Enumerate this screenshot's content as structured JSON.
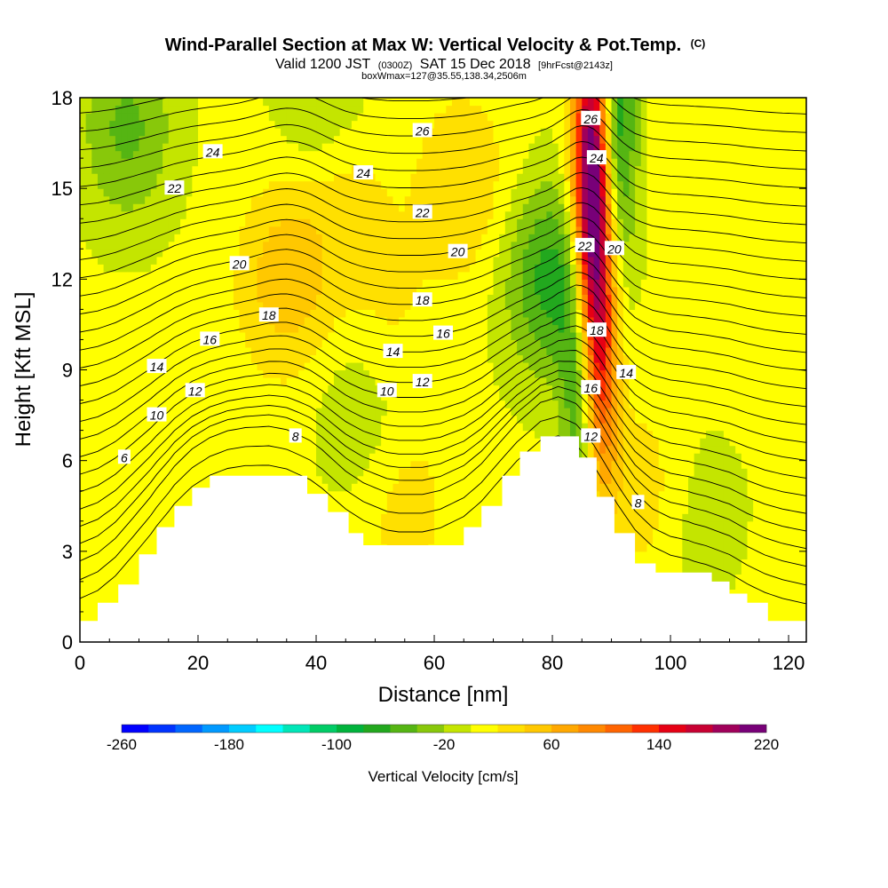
{
  "chart_data": {
    "type": "heatmap",
    "title": "Wind-Parallel Section at Max W: Vertical Velocity & Pot.Temp.",
    "title_unit": "(C)",
    "subtitle_parts": [
      "Valid 1200 JST",
      "(0300Z)",
      "SAT 15 Dec 2018",
      "[9hrFcst@2143z]"
    ],
    "subtitle2": "boxWmax=127@35.55,138.34,2506m",
    "xlabel": "Distance [nm]",
    "ylabel": "Height [Kft MSL]",
    "xlim": [
      0,
      123
    ],
    "ylim": [
      0,
      18
    ],
    "xticks": [
      "0",
      "20",
      "40",
      "60",
      "80",
      "100",
      "120"
    ],
    "yticks": [
      "0",
      "3",
      "6",
      "9",
      "12",
      "15",
      "18"
    ],
    "colorbar": {
      "label": "Vertical Velocity [cm/s]",
      "range": [
        -260,
        220
      ],
      "tick_labels": [
        "-260",
        "-180",
        "-100",
        "-20",
        "60",
        "140",
        "220"
      ],
      "colors": [
        "#0000ff",
        "#0033ff",
        "#0066ff",
        "#0099ff",
        "#00ccff",
        "#00ffff",
        "#00e6b8",
        "#00cc66",
        "#00b33c",
        "#22a81e",
        "#55b513",
        "#88c80a",
        "#c4e500",
        "#ffff00",
        "#ffe000",
        "#ffc800",
        "#ffa800",
        "#ff8800",
        "#ff6400",
        "#ff3000",
        "#e60014",
        "#c80032",
        "#a0005a",
        "#780078"
      ]
    },
    "terrain_heights_kft": [
      [
        0,
        0.7
      ],
      [
        3,
        0.7
      ],
      [
        3,
        1.3
      ],
      [
        6.5,
        1.3
      ],
      [
        6.5,
        1.9
      ],
      [
        10,
        1.9
      ],
      [
        10,
        2.9
      ],
      [
        13,
        2.9
      ],
      [
        13,
        3.8
      ],
      [
        16,
        3.8
      ],
      [
        16,
        4.5
      ],
      [
        19,
        4.5
      ],
      [
        19,
        5.1
      ],
      [
        22,
        5.1
      ],
      [
        22,
        5.5
      ],
      [
        38.5,
        5.5
      ],
      [
        38.5,
        4.9
      ],
      [
        42,
        4.9
      ],
      [
        42,
        4.3
      ],
      [
        45.5,
        4.3
      ],
      [
        45.5,
        3.6
      ],
      [
        48,
        3.6
      ],
      [
        48,
        3.2
      ],
      [
        65,
        3.2
      ],
      [
        65,
        3.8
      ],
      [
        68,
        3.8
      ],
      [
        68,
        4.5
      ],
      [
        71.5,
        4.5
      ],
      [
        71.5,
        5.5
      ],
      [
        74.5,
        5.5
      ],
      [
        74.5,
        6.3
      ],
      [
        78,
        6.3
      ],
      [
        78,
        6.8
      ],
      [
        84.5,
        6.8
      ],
      [
        84.5,
        6.1
      ],
      [
        87.5,
        6.1
      ],
      [
        87.5,
        4.8
      ],
      [
        90.5,
        4.8
      ],
      [
        90.5,
        3.6
      ],
      [
        94,
        3.6
      ],
      [
        94,
        2.6
      ],
      [
        97.5,
        2.6
      ],
      [
        97.5,
        2.3
      ],
      [
        107,
        2.3
      ],
      [
        107,
        2.0
      ],
      [
        110,
        2.0
      ],
      [
        110,
        1.6
      ],
      [
        113,
        1.6
      ],
      [
        113,
        1.3
      ],
      [
        116.5,
        1.3
      ],
      [
        116.5,
        0.7
      ],
      [
        123,
        0.7
      ]
    ],
    "velocity_features_cm_s": [
      {
        "x": 87,
        "y": 13,
        "w": 150
      },
      {
        "x": 86.5,
        "y": 16.5,
        "w": 140
      },
      {
        "x": 88,
        "y": 9,
        "w": 110
      },
      {
        "x": 35,
        "y": 12,
        "w": 50
      },
      {
        "x": 44,
        "y": 16,
        "w": 45
      },
      {
        "x": 51,
        "y": 10.5,
        "w": 25
      },
      {
        "x": 65,
        "y": 15,
        "w": 35
      },
      {
        "x": 55,
        "y": 4.5,
        "w": 25
      },
      {
        "x": 95,
        "y": 5,
        "w": 25
      },
      {
        "x": 110,
        "y": 3,
        "w": 25
      },
      {
        "x": 80,
        "y": 12,
        "w": -75
      },
      {
        "x": 91,
        "y": 17,
        "w": -90
      },
      {
        "x": 85,
        "y": 8,
        "w": -85
      },
      {
        "x": 8,
        "y": 17,
        "w": -50
      },
      {
        "x": 42,
        "y": 17.5,
        "w": -55
      },
      {
        "x": 108,
        "y": 3.5,
        "w": -40
      },
      {
        "x": 48,
        "y": 8,
        "w": -30
      },
      {
        "x": 2,
        "y": 5,
        "w": 15
      },
      {
        "x": 119,
        "y": 9,
        "w": 10
      }
    ],
    "theta_contour_labels": [
      {
        "text": "6",
        "x": 7.5,
        "y": 6.1
      },
      {
        "text": "8",
        "x": 36.5,
        "y": 6.8
      },
      {
        "text": "10",
        "x": 13,
        "y": 7.5
      },
      {
        "text": "12",
        "x": 19.5,
        "y": 8.3
      },
      {
        "text": "14",
        "x": 13,
        "y": 9.1
      },
      {
        "text": "16",
        "x": 22,
        "y": 10.0
      },
      {
        "text": "18",
        "x": 32,
        "y": 10.8
      },
      {
        "text": "20",
        "x": 27,
        "y": 12.5
      },
      {
        "text": "22",
        "x": 16,
        "y": 15.0
      },
      {
        "text": "24",
        "x": 22.5,
        "y": 16.2
      },
      {
        "text": "10",
        "x": 52,
        "y": 8.3
      },
      {
        "text": "12",
        "x": 58,
        "y": 8.6
      },
      {
        "text": "14",
        "x": 53,
        "y": 9.6
      },
      {
        "text": "16",
        "x": 61.5,
        "y": 10.2
      },
      {
        "text": "18",
        "x": 58,
        "y": 11.3
      },
      {
        "text": "20",
        "x": 64,
        "y": 12.9
      },
      {
        "text": "22",
        "x": 58,
        "y": 14.2
      },
      {
        "text": "24",
        "x": 48,
        "y": 15.5
      },
      {
        "text": "26",
        "x": 58,
        "y": 16.9
      },
      {
        "text": "12",
        "x": 86.5,
        "y": 6.8
      },
      {
        "text": "16",
        "x": 86.5,
        "y": 8.4
      },
      {
        "text": "18",
        "x": 87.5,
        "y": 10.3
      },
      {
        "text": "14",
        "x": 92.5,
        "y": 8.9
      },
      {
        "text": "20",
        "x": 90.5,
        "y": 13.0
      },
      {
        "text": "22",
        "x": 85.5,
        "y": 13.1
      },
      {
        "text": "24",
        "x": 87.5,
        "y": 16.0
      },
      {
        "text": "26",
        "x": 86.5,
        "y": 17.3
      },
      {
        "text": "8",
        "x": 94.5,
        "y": 4.6
      }
    ]
  }
}
